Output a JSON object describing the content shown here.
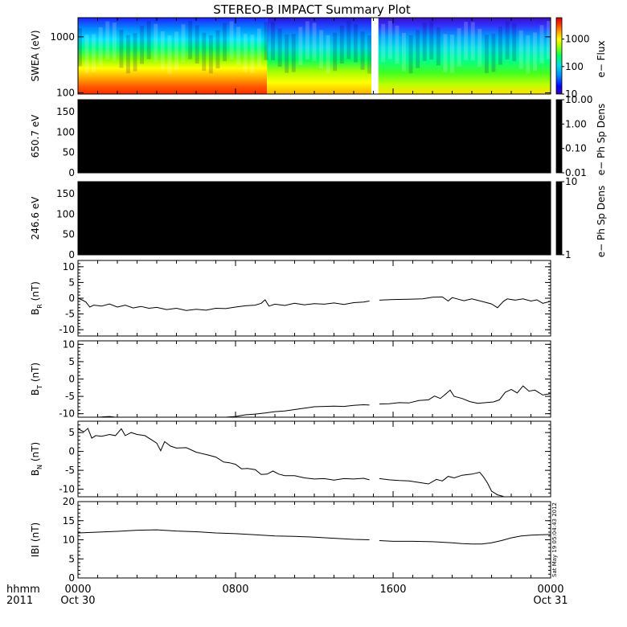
{
  "title": "STEREO-B IMPACT Summary Plot",
  "stamp": "Sat May 19 05:04:43 2012",
  "x_axis": {
    "row1_left": "hhmm",
    "row2_left": "2011",
    "ticks": [
      {
        "t": 0,
        "label": "0000",
        "sub": "Oct 30"
      },
      {
        "t": 8,
        "label": "0800",
        "sub": ""
      },
      {
        "t": 16,
        "label": "1600",
        "sub": ""
      },
      {
        "t": 24,
        "label": "0000",
        "sub": "Oct 31"
      }
    ],
    "range_hours": [
      0,
      24
    ]
  },
  "chart_data": [
    {
      "type": "heatmap",
      "ylabel": "SWEA (eV)",
      "scale": "log",
      "ylim": [
        95,
        2200
      ],
      "y_ticks": [
        {
          "v": 100,
          "label": "100"
        },
        {
          "v": 1000,
          "label": "1000"
        }
      ],
      "colorbar": {
        "label": "e− Flux",
        "ticks": [
          {
            "v": 10,
            "label": "10"
          },
          {
            "v": 100,
            "label": "100"
          },
          {
            "v": 1000,
            "label": "1000"
          }
        ],
        "range": [
          10,
          6000
        ],
        "colors": [
          "#3a00a8",
          "#0000ff",
          "#0090ff",
          "#00e0e0",
          "#00ff60",
          "#a0ff00",
          "#ffff00",
          "#ffa000",
          "#ff3000",
          "#d00000"
        ]
      },
      "data_gap_hours": [
        14.9,
        15.25
      ],
      "flux_regions": [
        {
          "t0": 0,
          "t1": 9.6,
          "level": "high"
        },
        {
          "t0": 9.6,
          "t1": 14.9,
          "level": "medium"
        },
        {
          "t0": 15.25,
          "t1": 24,
          "level": "medium-low"
        }
      ]
    },
    {
      "type": "heatmap",
      "ylabel": "650.7 eV",
      "ylim": [
        0,
        180
      ],
      "y_ticks": [
        {
          "v": 0,
          "label": "0"
        },
        {
          "v": 50,
          "label": "50"
        },
        {
          "v": 100,
          "label": "100"
        },
        {
          "v": 150,
          "label": "150"
        }
      ],
      "colorbar": {
        "label": "e− Ph Sp Dens",
        "ticks": [
          {
            "v": 10,
            "label": "10.00"
          },
          {
            "v": 1,
            "label": "1.00"
          },
          {
            "v": 0.1,
            "label": "0.10"
          },
          {
            "v": 0.01,
            "label": "0.01"
          }
        ],
        "range": [
          0.01,
          10
        ]
      },
      "fill": "#000000"
    },
    {
      "type": "heatmap",
      "ylabel": "246.6 eV",
      "ylim": [
        0,
        180
      ],
      "y_ticks": [
        {
          "v": 0,
          "label": "0"
        },
        {
          "v": 50,
          "label": "50"
        },
        {
          "v": 100,
          "label": "100"
        },
        {
          "v": 150,
          "label": "150"
        }
      ],
      "colorbar": {
        "label": "e− Ph Sp Dens",
        "ticks": [
          {
            "v": 10,
            "label": "10"
          },
          {
            "v": 1,
            "label": "1"
          }
        ],
        "range": [
          1,
          10
        ]
      },
      "fill": "#000000"
    },
    {
      "type": "line",
      "ylabel_main": "B",
      "ylabel_sub": "R",
      "ylabel_unit": " (nT)",
      "ylim": [
        -12,
        12
      ],
      "y_ticks": [
        -10,
        -5,
        0,
        5,
        10
      ],
      "segments": [
        [
          [
            0,
            0
          ],
          [
            0.2,
            -0.5
          ],
          [
            0.4,
            -1.2
          ],
          [
            0.6,
            -2.8
          ],
          [
            0.8,
            -2.2
          ],
          [
            1.2,
            -2.5
          ],
          [
            1.6,
            -1.8
          ],
          [
            2.0,
            -2.8
          ],
          [
            2.4,
            -2.2
          ],
          [
            2.8,
            -3.1
          ],
          [
            3.2,
            -2.6
          ],
          [
            3.6,
            -3.2
          ],
          [
            4.0,
            -2.9
          ],
          [
            4.5,
            -3.6
          ],
          [
            5.0,
            -3.2
          ],
          [
            5.5,
            -3.9
          ],
          [
            6.0,
            -3.5
          ],
          [
            6.5,
            -3.8
          ],
          [
            7.0,
            -3.2
          ],
          [
            7.5,
            -3.3
          ],
          [
            8.0,
            -2.8
          ],
          [
            8.5,
            -2.4
          ],
          [
            9.0,
            -2.2
          ],
          [
            9.3,
            -1.6
          ],
          [
            9.5,
            -0.5
          ],
          [
            9.7,
            -2.5
          ],
          [
            10.0,
            -1.9
          ],
          [
            10.5,
            -2.3
          ],
          [
            11.0,
            -1.6
          ],
          [
            11.5,
            -2.1
          ],
          [
            12.0,
            -1.7
          ],
          [
            12.5,
            -1.9
          ],
          [
            13.0,
            -1.5
          ],
          [
            13.5,
            -2.0
          ],
          [
            14.0,
            -1.4
          ],
          [
            14.5,
            -1.2
          ],
          [
            14.8,
            -0.9
          ]
        ],
        [
          [
            15.3,
            -0.6
          ],
          [
            16.0,
            -0.4
          ],
          [
            16.8,
            -0.3
          ],
          [
            17.5,
            -0.2
          ],
          [
            18.0,
            0.3
          ],
          [
            18.5,
            0.4
          ],
          [
            18.8,
            -0.9
          ],
          [
            19.0,
            0.2
          ],
          [
            19.3,
            -0.3
          ],
          [
            19.6,
            -0.8
          ],
          [
            20.0,
            -0.2
          ],
          [
            20.5,
            -1.0
          ],
          [
            21.0,
            -1.8
          ],
          [
            21.3,
            -3.0
          ],
          [
            21.6,
            -1.0
          ],
          [
            21.8,
            -0.2
          ],
          [
            22.2,
            -0.6
          ],
          [
            22.6,
            -0.2
          ],
          [
            23.0,
            -0.9
          ],
          [
            23.3,
            -0.5
          ],
          [
            23.6,
            -1.6
          ],
          [
            24.0,
            -1.0
          ]
        ]
      ]
    },
    {
      "type": "line",
      "ylabel_main": "B",
      "ylabel_sub": "T",
      "ylabel_unit": " (nT)",
      "ylim": [
        -11,
        11
      ],
      "y_ticks": [
        -10,
        -5,
        0,
        5,
        10
      ],
      "segments": [
        [
          [
            0,
            -11
          ],
          [
            1.0,
            -11
          ],
          [
            1.6,
            -10.8
          ],
          [
            1.9,
            -11
          ],
          [
            7.5,
            -11
          ],
          [
            8.0,
            -10.8
          ],
          [
            8.5,
            -10.3
          ],
          [
            9.0,
            -10.1
          ],
          [
            9.5,
            -9.8
          ],
          [
            10.0,
            -9.4
          ],
          [
            10.5,
            -9.2
          ],
          [
            11.0,
            -8.8
          ],
          [
            11.5,
            -8.4
          ],
          [
            12.0,
            -8.0
          ],
          [
            12.5,
            -7.9
          ],
          [
            13.0,
            -7.8
          ],
          [
            13.5,
            -7.9
          ],
          [
            14.0,
            -7.6
          ],
          [
            14.5,
            -7.4
          ],
          [
            14.8,
            -7.5
          ]
        ],
        [
          [
            15.3,
            -7.2
          ],
          [
            15.8,
            -7.1
          ],
          [
            16.3,
            -6.8
          ],
          [
            16.8,
            -6.9
          ],
          [
            17.3,
            -6.2
          ],
          [
            17.8,
            -6.0
          ],
          [
            18.1,
            -4.9
          ],
          [
            18.4,
            -5.6
          ],
          [
            18.7,
            -4.2
          ],
          [
            18.9,
            -3.2
          ],
          [
            19.1,
            -5.0
          ],
          [
            19.5,
            -5.6
          ],
          [
            19.9,
            -6.5
          ],
          [
            20.3,
            -7.0
          ],
          [
            20.7,
            -6.8
          ],
          [
            21.1,
            -6.6
          ],
          [
            21.4,
            -6.0
          ],
          [
            21.7,
            -3.8
          ],
          [
            22.0,
            -3.0
          ],
          [
            22.3,
            -4.0
          ],
          [
            22.6,
            -2.0
          ],
          [
            22.9,
            -3.5
          ],
          [
            23.2,
            -3.2
          ],
          [
            23.6,
            -4.6
          ],
          [
            24.0,
            -4.2
          ]
        ]
      ]
    },
    {
      "type": "line",
      "ylabel_main": "B",
      "ylabel_sub": "N",
      "ylabel_unit": " (nT)",
      "ylim": [
        -12,
        8
      ],
      "y_ticks": [
        -10,
        -5,
        0,
        5
      ],
      "segments": [
        [
          [
            0,
            6.0
          ],
          [
            0.3,
            5.2
          ],
          [
            0.5,
            6.1
          ],
          [
            0.7,
            3.5
          ],
          [
            0.9,
            4.2
          ],
          [
            1.2,
            4.0
          ],
          [
            1.6,
            4.5
          ],
          [
            1.9,
            4.2
          ],
          [
            2.2,
            6.0
          ],
          [
            2.4,
            4.2
          ],
          [
            2.7,
            5.0
          ],
          [
            3.0,
            4.5
          ],
          [
            3.4,
            4.2
          ],
          [
            3.7,
            3.2
          ],
          [
            4.0,
            2.2
          ],
          [
            4.2,
            0.2
          ],
          [
            4.4,
            2.6
          ],
          [
            4.7,
            1.4
          ],
          [
            5.0,
            0.9
          ],
          [
            5.5,
            1.0
          ],
          [
            6.0,
            -0.2
          ],
          [
            6.5,
            -0.8
          ],
          [
            7.0,
            -1.5
          ],
          [
            7.4,
            -2.8
          ],
          [
            7.7,
            -3.0
          ],
          [
            8.0,
            -3.4
          ],
          [
            8.3,
            -4.6
          ],
          [
            8.6,
            -4.5
          ],
          [
            9.0,
            -4.8
          ],
          [
            9.3,
            -6.1
          ],
          [
            9.6,
            -6.0
          ],
          [
            9.9,
            -5.2
          ],
          [
            10.2,
            -6.0
          ],
          [
            10.5,
            -6.4
          ],
          [
            11.0,
            -6.4
          ],
          [
            11.5,
            -7.0
          ],
          [
            12.0,
            -7.3
          ],
          [
            12.5,
            -7.2
          ],
          [
            13.0,
            -7.6
          ],
          [
            13.5,
            -7.2
          ],
          [
            14.0,
            -7.3
          ],
          [
            14.5,
            -7.1
          ],
          [
            14.8,
            -7.5
          ]
        ],
        [
          [
            15.3,
            -7.2
          ],
          [
            15.8,
            -7.5
          ],
          [
            16.3,
            -7.7
          ],
          [
            16.8,
            -7.8
          ],
          [
            17.3,
            -8.2
          ],
          [
            17.8,
            -8.6
          ],
          [
            18.2,
            -7.4
          ],
          [
            18.5,
            -7.8
          ],
          [
            18.8,
            -6.6
          ],
          [
            19.1,
            -7.0
          ],
          [
            19.5,
            -6.3
          ],
          [
            20.0,
            -6.0
          ],
          [
            20.4,
            -5.5
          ],
          [
            20.6,
            -6.8
          ],
          [
            20.8,
            -8.4
          ],
          [
            21.0,
            -10.5
          ],
          [
            21.3,
            -11.5
          ],
          [
            21.6,
            -11.9
          ]
        ]
      ]
    },
    {
      "type": "line",
      "ylabel": "IBI (nT)",
      "ylim": [
        0,
        20
      ],
      "y_ticks": [
        0,
        5,
        10,
        15,
        20
      ],
      "segments": [
        [
          [
            0,
            11.8
          ],
          [
            1.0,
            12.0
          ],
          [
            2.0,
            12.2
          ],
          [
            3.0,
            12.5
          ],
          [
            4.0,
            12.6
          ],
          [
            5.0,
            12.3
          ],
          [
            6.0,
            12.1
          ],
          [
            7.0,
            11.8
          ],
          [
            8.0,
            11.6
          ],
          [
            9.0,
            11.3
          ],
          [
            10.0,
            11.0
          ],
          [
            11.0,
            10.9
          ],
          [
            12.0,
            10.7
          ],
          [
            13.0,
            10.4
          ],
          [
            14.0,
            10.1
          ],
          [
            14.8,
            10.0
          ]
        ],
        [
          [
            15.3,
            9.8
          ],
          [
            16.0,
            9.6
          ],
          [
            17.0,
            9.6
          ],
          [
            18.0,
            9.5
          ],
          [
            19.0,
            9.2
          ],
          [
            19.5,
            9.0
          ],
          [
            20.0,
            8.9
          ],
          [
            20.5,
            8.9
          ],
          [
            21.0,
            9.2
          ],
          [
            21.5,
            9.8
          ],
          [
            22.0,
            10.5
          ],
          [
            22.5,
            11.0
          ],
          [
            23.0,
            11.2
          ],
          [
            23.5,
            11.3
          ],
          [
            24.0,
            11.4
          ]
        ]
      ]
    }
  ]
}
